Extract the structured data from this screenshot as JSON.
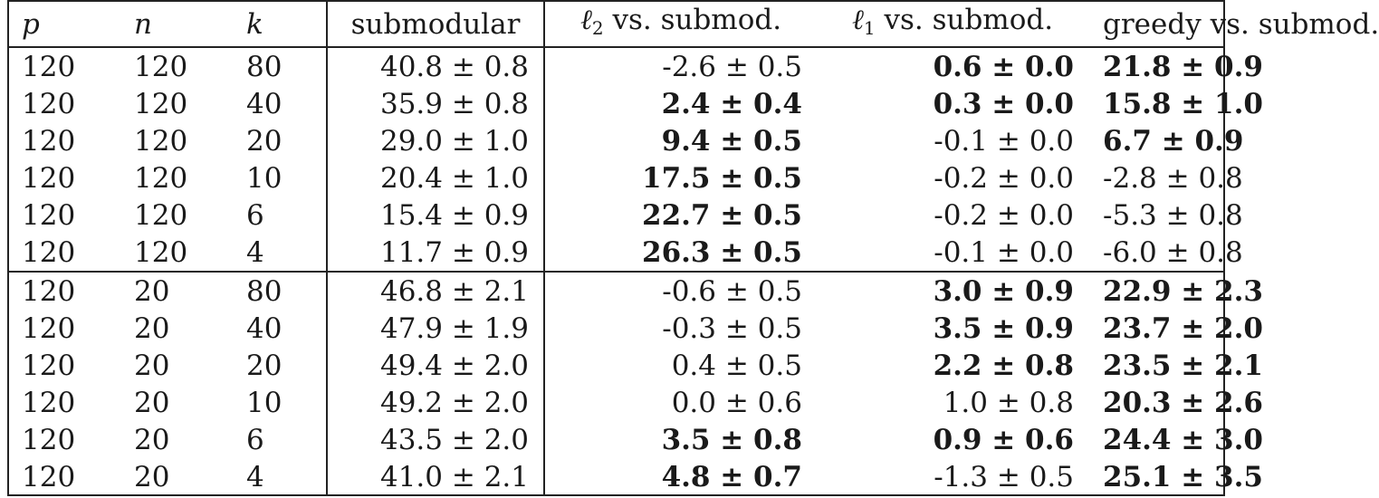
{
  "header": {
    "p": "p",
    "n": "n",
    "k": "k",
    "submodular": "submodular",
    "l2_symbol": "ℓ",
    "l2_sub": "2",
    "l2_rest": " vs. submod.",
    "l1_symbol": "ℓ",
    "l1_sub": "1",
    "l1_rest": " vs. submod.",
    "greedy": "greedy vs. submod."
  },
  "rows": [
    {
      "p": "120",
      "n": "120",
      "k": "80",
      "sub": "40.8 ± 0.8",
      "l2": "-2.6 ± 0.5",
      "l2_bold": false,
      "l1": "0.6 ± 0.0",
      "l1_bold": true,
      "gr": "21.8 ± 0.9",
      "gr_bold": true
    },
    {
      "p": "120",
      "n": "120",
      "k": "40",
      "sub": "35.9 ± 0.8",
      "l2": "2.4 ± 0.4",
      "l2_bold": true,
      "l1": "0.3 ± 0.0",
      "l1_bold": true,
      "gr": "15.8 ± 1.0",
      "gr_bold": true
    },
    {
      "p": "120",
      "n": "120",
      "k": "20",
      "sub": "29.0 ± 1.0",
      "l2": "9.4 ± 0.5",
      "l2_bold": true,
      "l1": "-0.1 ± 0.0",
      "l1_bold": false,
      "gr": "6.7 ± 0.9",
      "gr_bold": true
    },
    {
      "p": "120",
      "n": "120",
      "k": "10",
      "sub": "20.4 ± 1.0",
      "l2": "17.5 ± 0.5",
      "l2_bold": true,
      "l1": "-0.2 ± 0.0",
      "l1_bold": false,
      "gr": "-2.8 ± 0.8",
      "gr_bold": false
    },
    {
      "p": "120",
      "n": "120",
      "k": "6",
      "sub": "15.4 ± 0.9",
      "l2": "22.7 ± 0.5",
      "l2_bold": true,
      "l1": "-0.2 ± 0.0",
      "l1_bold": false,
      "gr": "-5.3 ± 0.8",
      "gr_bold": false
    },
    {
      "p": "120",
      "n": "120",
      "k": "4",
      "sub": "11.7 ± 0.9",
      "l2": "26.3 ± 0.5",
      "l2_bold": true,
      "l1": "-0.1 ± 0.0",
      "l1_bold": false,
      "gr": "-6.0 ± 0.8",
      "gr_bold": false
    },
    {
      "p": "120",
      "n": "20",
      "k": "80",
      "sub": "46.8 ± 2.1",
      "l2": "-0.6 ± 0.5",
      "l2_bold": false,
      "l1": "3.0 ± 0.9",
      "l1_bold": true,
      "gr": "22.9 ± 2.3",
      "gr_bold": true,
      "group_start": true
    },
    {
      "p": "120",
      "n": "20",
      "k": "40",
      "sub": "47.9 ± 1.9",
      "l2": "-0.3 ± 0.5",
      "l2_bold": false,
      "l1": "3.5 ± 0.9",
      "l1_bold": true,
      "gr": "23.7 ± 2.0",
      "gr_bold": true
    },
    {
      "p": "120",
      "n": "20",
      "k": "20",
      "sub": "49.4 ± 2.0",
      "l2": "0.4 ± 0.5",
      "l2_bold": false,
      "l1": "2.2 ± 0.8",
      "l1_bold": true,
      "gr": "23.5 ± 2.1",
      "gr_bold": true
    },
    {
      "p": "120",
      "n": "20",
      "k": "10",
      "sub": "49.2 ± 2.0",
      "l2": "0.0 ± 0.6",
      "l2_bold": false,
      "l1": "1.0 ± 0.8",
      "l1_bold": false,
      "gr": "20.3 ± 2.6",
      "gr_bold": true
    },
    {
      "p": "120",
      "n": "20",
      "k": "6",
      "sub": "43.5 ± 2.0",
      "l2": "3.5 ± 0.8",
      "l2_bold": true,
      "l1": "0.9 ± 0.6",
      "l1_bold": true,
      "gr": "24.4 ± 3.0",
      "gr_bold": true
    },
    {
      "p": "120",
      "n": "20",
      "k": "4",
      "sub": "41.0 ± 2.1",
      "l2": "4.8 ± 0.7",
      "l2_bold": true,
      "l1": "-1.3 ± 0.5",
      "l1_bold": false,
      "gr": "25.1 ± 3.5",
      "gr_bold": true
    }
  ]
}
